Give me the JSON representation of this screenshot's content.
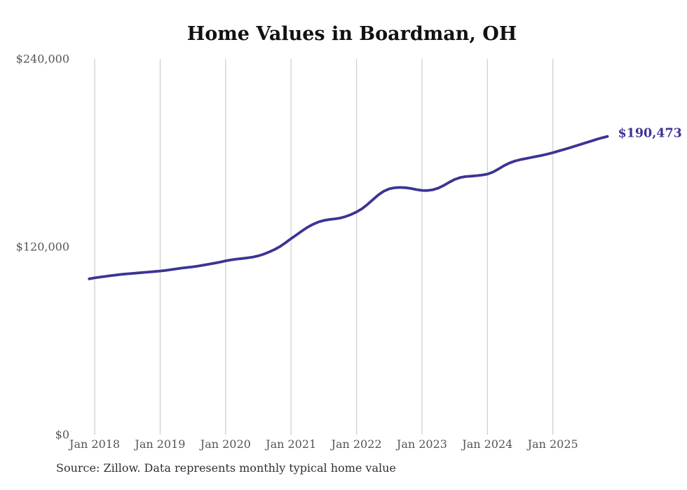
{
  "theme": {
    "background": "#ffffff",
    "line_color": "#3b3494",
    "grid_color": "#cccccc",
    "title_color": "#111111",
    "tick_label_color": "#555555",
    "source_color": "#303030",
    "end_label_color": "#3b3494"
  },
  "chart_data": {
    "type": "line",
    "title": "Home Values in Boardman, OH",
    "source_note": "Source: Zillow. Data represents monthly typical home value",
    "xlabel": "",
    "ylabel": "",
    "ylim": [
      0,
      240000
    ],
    "grid": "vertical-only",
    "legend": "none",
    "final_value": 190473,
    "final_value_label": "$190,473",
    "y_ticks": [
      {
        "value": 0,
        "label": "$0"
      },
      {
        "value": 120000,
        "label": "$120,000"
      },
      {
        "value": 240000,
        "label": "$240,000"
      }
    ],
    "x_ticks": [
      {
        "label": "Jan 2018",
        "index": 1
      },
      {
        "label": "Jan 2019",
        "index": 13
      },
      {
        "label": "Jan 2020",
        "index": 25
      },
      {
        "label": "Jan 2021",
        "index": 37
      },
      {
        "label": "Jan 2022",
        "index": 49
      },
      {
        "label": "Jan 2023",
        "index": 61
      },
      {
        "label": "Jan 2024",
        "index": 73
      },
      {
        "label": "Jan 2025",
        "index": 85
      }
    ],
    "series": [
      {
        "name": "Monthly typical home value",
        "months": [
          "2017-12",
          "2018-01",
          "2018-02",
          "2018-03",
          "2018-04",
          "2018-05",
          "2018-06",
          "2018-07",
          "2018-08",
          "2018-09",
          "2018-10",
          "2018-11",
          "2018-12",
          "2019-01",
          "2019-02",
          "2019-03",
          "2019-04",
          "2019-05",
          "2019-06",
          "2019-07",
          "2019-08",
          "2019-09",
          "2019-10",
          "2019-11",
          "2019-12",
          "2020-01",
          "2020-02",
          "2020-03",
          "2020-04",
          "2020-05",
          "2020-06",
          "2020-07",
          "2020-08",
          "2020-09",
          "2020-10",
          "2020-11",
          "2020-12",
          "2021-01",
          "2021-02",
          "2021-03",
          "2021-04",
          "2021-05",
          "2021-06",
          "2021-07",
          "2021-08",
          "2021-09",
          "2021-10",
          "2021-11",
          "2021-12",
          "2022-01",
          "2022-02",
          "2022-03",
          "2022-04",
          "2022-05",
          "2022-06",
          "2022-07",
          "2022-08",
          "2022-09",
          "2022-10",
          "2022-11",
          "2022-12",
          "2023-01",
          "2023-02",
          "2023-03",
          "2023-04",
          "2023-05",
          "2023-06",
          "2023-07",
          "2023-08",
          "2023-09",
          "2023-10",
          "2023-11",
          "2023-12",
          "2024-01",
          "2024-02",
          "2024-03",
          "2024-04",
          "2024-05",
          "2024-06",
          "2024-07",
          "2024-08",
          "2024-09",
          "2024-10",
          "2024-11",
          "2024-12",
          "2025-01",
          "2025-02",
          "2025-03",
          "2025-04",
          "2025-05",
          "2025-06",
          "2025-07",
          "2025-08",
          "2025-09",
          "2025-10",
          "2025-11"
        ],
        "values": [
          99500,
          100100,
          100600,
          101100,
          101600,
          102000,
          102400,
          102700,
          103000,
          103300,
          103600,
          103900,
          104200,
          104500,
          104900,
          105400,
          105900,
          106400,
          106800,
          107200,
          107700,
          108300,
          108900,
          109500,
          110200,
          111000,
          111600,
          112100,
          112500,
          112900,
          113400,
          114200,
          115300,
          116700,
          118300,
          120200,
          122600,
          125200,
          127600,
          130100,
          132400,
          134300,
          135800,
          136800,
          137400,
          137800,
          138300,
          139300,
          140600,
          142200,
          144300,
          147000,
          150100,
          153100,
          155500,
          157000,
          157700,
          157900,
          157700,
          157200,
          156500,
          156000,
          155900,
          156400,
          157500,
          159200,
          161200,
          163000,
          164200,
          164800,
          165100,
          165400,
          165800,
          166400,
          167700,
          169600,
          171700,
          173400,
          174700,
          175600,
          176300,
          177000,
          177700,
          178400,
          179200,
          180100,
          181100,
          182100,
          183100,
          184200,
          185300,
          186400,
          187500,
          188600,
          189600,
          190473
        ]
      }
    ]
  }
}
